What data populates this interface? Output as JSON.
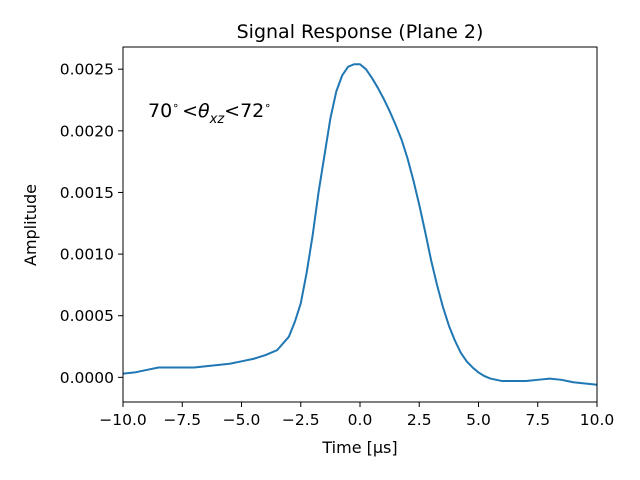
{
  "chart_data": {
    "type": "line",
    "title": "Signal Response (Plane 2)",
    "xlabel": "Time [μs]",
    "ylabel": "Amplitude",
    "xlim": [
      -10.0,
      10.0
    ],
    "ylim": [
      -0.0002,
      0.00268
    ],
    "grid": false,
    "legend": "none",
    "annotation": {
      "text": "70° < θ_xz < 72°",
      "lower": "70",
      "upper": "72",
      "symbol": "θ",
      "subscript": "xz",
      "degree": "∘",
      "lt": "<"
    },
    "xticks": [
      -10.0,
      -7.5,
      -5.0,
      -2.5,
      0.0,
      2.5,
      5.0,
      7.5,
      10.0
    ],
    "xtick_labels": [
      "−10.0",
      "−7.5",
      "−5.0",
      "−2.5",
      "0.0",
      "2.5",
      "5.0",
      "7.5",
      "10.0"
    ],
    "yticks": [
      0.0,
      0.0005,
      0.001,
      0.0015,
      0.002,
      0.0025
    ],
    "ytick_labels": [
      "0.0000",
      "0.0005",
      "0.0010",
      "0.0015",
      "0.0020",
      "0.0025"
    ],
    "series": [
      {
        "color": "#1f77b4",
        "x": [
          -10.0,
          -9.5,
          -9.0,
          -8.5,
          -8.0,
          -7.5,
          -7.0,
          -6.5,
          -6.0,
          -5.5,
          -5.0,
          -4.5,
          -4.0,
          -3.5,
          -3.0,
          -2.75,
          -2.5,
          -2.25,
          -2.0,
          -1.75,
          -1.5,
          -1.25,
          -1.0,
          -0.75,
          -0.5,
          -0.25,
          0.0,
          0.25,
          0.5,
          0.75,
          1.0,
          1.25,
          1.5,
          1.75,
          2.0,
          2.25,
          2.5,
          2.75,
          3.0,
          3.25,
          3.5,
          3.75,
          4.0,
          4.25,
          4.5,
          4.75,
          5.0,
          5.25,
          5.5,
          6.0,
          6.5,
          7.0,
          7.5,
          8.0,
          8.5,
          9.0,
          9.5,
          10.0
        ],
        "y": [
          3e-05,
          4e-05,
          6e-05,
          8e-05,
          8e-05,
          8e-05,
          8e-05,
          9e-05,
          0.0001,
          0.00011,
          0.00013,
          0.00015,
          0.00018,
          0.00022,
          0.00033,
          0.00045,
          0.0006,
          0.00085,
          0.00115,
          0.0015,
          0.0018,
          0.0021,
          0.00232,
          0.00245,
          0.00252,
          0.00254,
          0.00254,
          0.0025,
          0.00243,
          0.00235,
          0.00226,
          0.00216,
          0.00205,
          0.00193,
          0.00178,
          0.0016,
          0.0014,
          0.00118,
          0.00095,
          0.00075,
          0.00057,
          0.00042,
          0.0003,
          0.0002,
          0.00013,
          8e-05,
          4e-05,
          1e-05,
          -1e-05,
          -3e-05,
          -3e-05,
          -3e-05,
          -2e-05,
          -1e-05,
          -2e-05,
          -4e-05,
          -5e-05,
          -6e-05
        ]
      }
    ]
  }
}
